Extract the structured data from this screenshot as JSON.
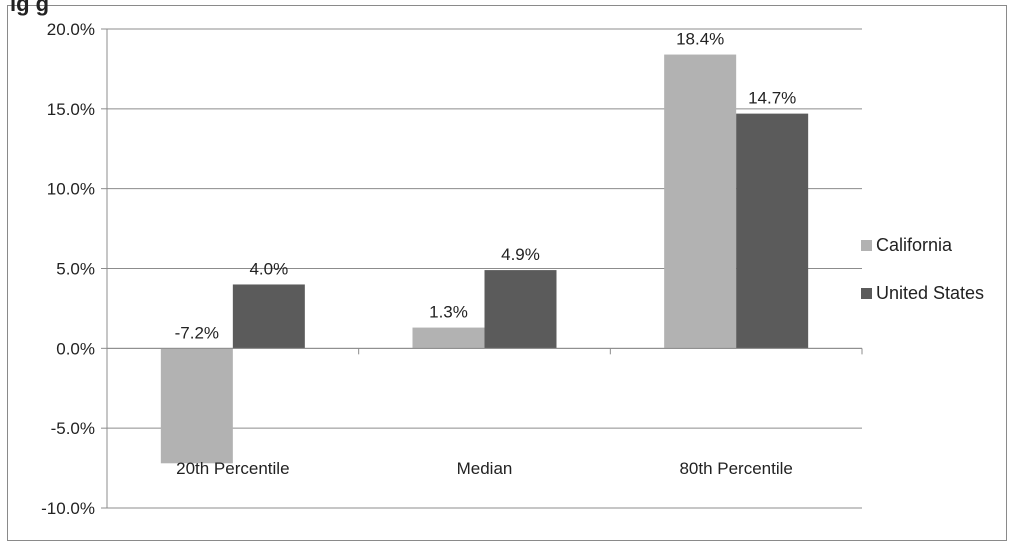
{
  "chart_data": {
    "type": "bar",
    "title_fragment": "ig        g",
    "categories": [
      "20th Percentile",
      "Median",
      "80th Percentile"
    ],
    "series": [
      {
        "name": "California",
        "values": [
          -7.2,
          1.3,
          18.4
        ],
        "labels": [
          "-7.2%",
          "1.3%",
          "18.4%"
        ],
        "color": "#b2b2b2"
      },
      {
        "name": "United States",
        "values": [
          4.0,
          4.9,
          14.7
        ],
        "labels": [
          "4.0%",
          "4.9%",
          "14.7%"
        ],
        "color": "#5b5b5b"
      }
    ],
    "ylim": [
      -10,
      20
    ],
    "yticks": [
      -10,
      -5,
      0,
      5,
      10,
      15,
      20
    ],
    "ytick_labels": [
      "-10.0%",
      "-5.0%",
      "0.0%",
      "5.0%",
      "10.0%",
      "15.0%",
      "20.0%"
    ],
    "grid": true,
    "legend_position": "right"
  }
}
